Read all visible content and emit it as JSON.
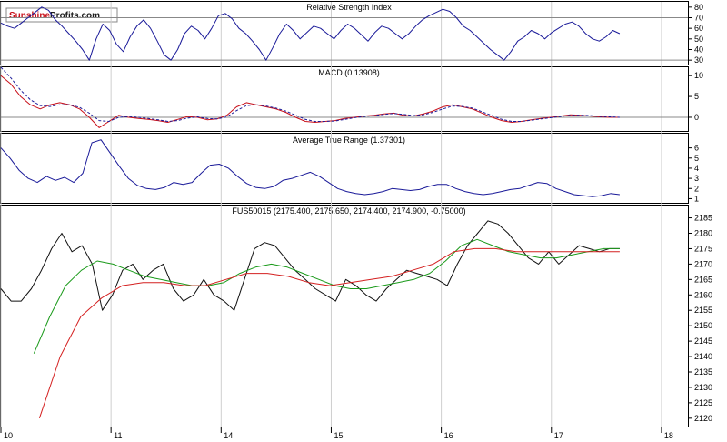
{
  "logo": {
    "part1": "Sunshine",
    "part2": "Profits.com"
  },
  "chart_data": [
    {
      "type": "line",
      "title": "Relative Strength Index",
      "ylim": [
        25,
        85
      ],
      "yticks": [
        30,
        40,
        50,
        60,
        70,
        80
      ],
      "reference_lines": [
        30,
        70
      ],
      "colors": {
        "rsi": "#1a1a99"
      },
      "series": [
        {
          "key": "rsi",
          "values": [
            65,
            62,
            60,
            65,
            70,
            75,
            80,
            77,
            68,
            62,
            55,
            48,
            40,
            30,
            50,
            64,
            58,
            45,
            38,
            52,
            62,
            68,
            60,
            48,
            35,
            30,
            40,
            55,
            62,
            58,
            50,
            60,
            72,
            74,
            69,
            60,
            55,
            48,
            40,
            30,
            42,
            55,
            64,
            58,
            50,
            56,
            62,
            60,
            55,
            50,
            58,
            64,
            60,
            54,
            48,
            56,
            62,
            60,
            55,
            50,
            55,
            62,
            68,
            72,
            75,
            78,
            76,
            70,
            62,
            58,
            52,
            46,
            40,
            35,
            30,
            38,
            48,
            52,
            58,
            55,
            50,
            56,
            60,
            64,
            66,
            62,
            55,
            50,
            48,
            52,
            58,
            55
          ]
        }
      ]
    },
    {
      "type": "line",
      "title": "MACD (0.13908)",
      "ylim": [
        -3.5,
        12
      ],
      "yticks": [
        0,
        5,
        10
      ],
      "reference_lines": [
        0
      ],
      "colors": {
        "macd": "#c8101a",
        "signal": "#1a1a99"
      },
      "series": [
        {
          "key": "macd",
          "values": [
            10,
            8,
            5,
            3,
            2,
            3,
            3.5,
            3,
            2,
            0,
            -2.5,
            -1,
            0.5,
            0,
            -0.3,
            -0.5,
            -0.8,
            -1.2,
            -0.5,
            0.2,
            0,
            -0.6,
            -0.4,
            0.5,
            2.5,
            3.5,
            3,
            2.5,
            2,
            1.2,
            0,
            -1,
            -1.2,
            -1,
            -0.8,
            -0.3,
            0,
            0.3,
            0.5,
            0.8,
            1,
            0.5,
            0.3,
            0.8,
            1.5,
            2.5,
            3,
            2.5,
            2,
            1,
            0,
            -0.8,
            -1.2,
            -1,
            -0.6,
            -0.3,
            0,
            0.3,
            0.6,
            0.5,
            0.3,
            0.1,
            0,
            0
          ]
        },
        {
          "key": "signal",
          "values": [
            12,
            9.5,
            6.5,
            4.2,
            2.8,
            2.6,
            3,
            3,
            2.4,
            1,
            -0.8,
            -1,
            0,
            0.2,
            0,
            -0.3,
            -0.6,
            -1,
            -0.8,
            -0.2,
            0.1,
            -0.3,
            -0.4,
            0.1,
            1.6,
            2.8,
            3,
            2.7,
            2.2,
            1.5,
            0.5,
            -0.5,
            -1,
            -1,
            -0.9,
            -0.5,
            -0.1,
            0.2,
            0.4,
            0.7,
            0.9,
            0.7,
            0.4,
            0.6,
            1.2,
            2,
            2.7,
            2.6,
            2.2,
            1.3,
            0.4,
            -0.5,
            -1,
            -1,
            -0.7,
            -0.4,
            -0.1,
            0.2,
            0.5,
            0.5,
            0.4,
            0.2,
            0.1,
            0
          ]
        }
      ]
    },
    {
      "type": "line",
      "title": "Average True Range (1.37301)",
      "ylim": [
        0.5,
        7.4
      ],
      "yticks": [
        1,
        2,
        3,
        4,
        5,
        6
      ],
      "colors": {
        "atr": "#1a1a99"
      },
      "series": [
        {
          "key": "atr",
          "values": [
            6,
            5,
            3.8,
            3,
            2.6,
            3.2,
            2.8,
            3.1,
            2.6,
            3.5,
            6.5,
            6.8,
            5.5,
            4.2,
            3,
            2.3,
            2,
            1.9,
            2.1,
            2.6,
            2.4,
            2.6,
            3.5,
            4.3,
            4.4,
            4,
            3.2,
            2.5,
            2.1,
            2,
            2.2,
            2.8,
            3,
            3.3,
            3.6,
            3.2,
            2.6,
            2,
            1.7,
            1.5,
            1.4,
            1.5,
            1.7,
            2,
            1.9,
            1.8,
            1.9,
            2.2,
            2.4,
            2.4,
            2,
            1.7,
            1.5,
            1.4,
            1.5,
            1.7,
            1.9,
            2,
            2.3,
            2.6,
            2.5,
            2,
            1.7,
            1.4,
            1.3,
            1.2,
            1.3,
            1.5,
            1.4
          ]
        }
      ]
    },
    {
      "type": "line",
      "title": "FUS50015 (2175.400, 2175.650, 2174.400, 2174.900, -0.75000)",
      "ylim": [
        2117,
        2189
      ],
      "yticks": [
        2120,
        2125,
        2130,
        2135,
        2140,
        2145,
        2150,
        2155,
        2160,
        2165,
        2170,
        2175,
        2180,
        2185
      ],
      "colors": {
        "price": "#111111",
        "ma_short": "#1a9a1a",
        "ma_long": "#d42020"
      },
      "series": [
        {
          "key": "price",
          "values": [
            2162,
            2158,
            2158,
            2162,
            2168,
            2175,
            2180,
            2174,
            2176,
            2170,
            2155,
            2160,
            2168,
            2170,
            2165,
            2168,
            2170,
            2162,
            2158,
            2160,
            2165,
            2160,
            2158,
            2155,
            2165,
            2175,
            2177,
            2176,
            2172,
            2168,
            2165,
            2162,
            2160,
            2158,
            2165,
            2163,
            2160,
            2158,
            2162,
            2165,
            2168,
            2167,
            2166,
            2165,
            2163,
            2170,
            2176,
            2180,
            2184,
            2183,
            2180,
            2176,
            2172,
            2170,
            2174,
            2170,
            2173,
            2176,
            2175,
            2174,
            2175,
            2175
          ]
        },
        {
          "key": "ma_short",
          "values": [
            2141,
            2153,
            2163,
            2168,
            2171,
            2170,
            2168,
            2166,
            2165,
            2164,
            2163,
            2163,
            2164,
            2167,
            2169,
            2170,
            2169,
            2167,
            2165,
            2163,
            2162,
            2162,
            2163,
            2164,
            2165,
            2167,
            2171,
            2176,
            2178,
            2176,
            2174,
            2173,
            2172,
            2172,
            2173,
            2174,
            2175,
            2175
          ]
        },
        {
          "key": "ma_long",
          "values": [
            2120,
            2140,
            2153,
            2159,
            2163,
            2164,
            2164,
            2163,
            2163,
            2165,
            2167,
            2167,
            2166,
            2164,
            2163,
            2164,
            2165,
            2166,
            2168,
            2170,
            2174,
            2175,
            2175,
            2174,
            2174,
            2174,
            2174,
            2174,
            2174
          ]
        }
      ]
    }
  ],
  "x_axis": {
    "labels": [
      "10",
      "11",
      "14",
      "15",
      "16",
      "17",
      "18"
    ],
    "days": [
      0,
      1,
      2,
      3,
      4,
      5,
      6
    ],
    "xlim": [
      0,
      6.24
    ],
    "data_end": 5.62,
    "short_ma_start": 0.3,
    "long_ma_start": 0.35
  }
}
